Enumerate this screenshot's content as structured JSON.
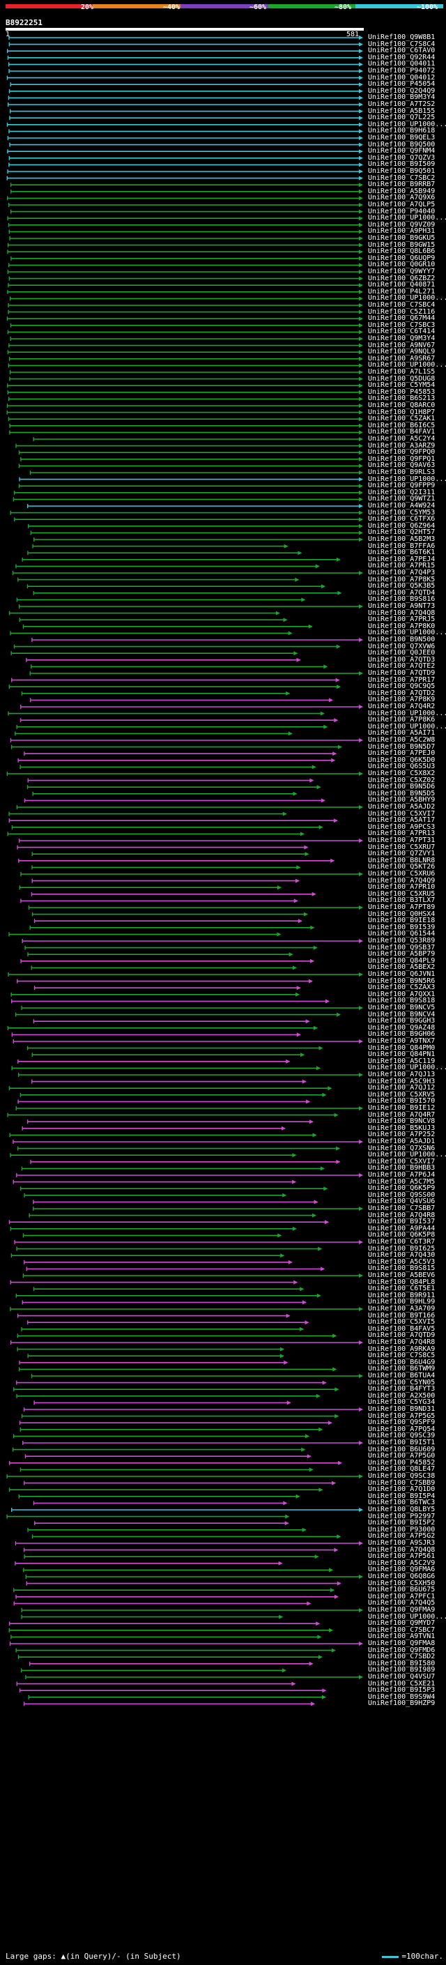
{
  "scale": {
    "labels": [
      "20%",
      "~40%",
      "~60%",
      "~80%",
      "~100%"
    ],
    "colors": [
      "#e8202a",
      "#e8821e",
      "#7b3fbf",
      "#1aa52c",
      "#37c8dc"
    ]
  },
  "query": {
    "id": "B8922251",
    "start": "1",
    "end": "581",
    "length": 581
  },
  "hit_ids": [
    "UniRef100_Q9W8B1",
    "UniRef100_C7S8C4",
    "UniRef100_C6TAV0",
    "UniRef100_Q92R44",
    "UniRef100_Q04011",
    "UniRef100_P94072",
    "UniRef100_Q04012",
    "UniRef100_P45054",
    "UniRef100_Q2Q4Q9",
    "UniRef100_B9M3Y4",
    "UniRef100_A7T2S2",
    "UniRef100_A5B155",
    "UniRef100_Q7L225",
    "UniRef100_UP1000...",
    "UniRef100_B9H618",
    "UniRef100_B9QEL3",
    "UniRef100_B9Q500",
    "UniRef100_Q9FNM4",
    "UniRef100_Q7QZV3",
    "UniRef100_B9I509",
    "UniRef100_B9Q501",
    "UniRef100_C7SBC2",
    "UniRef100_B9RRB7",
    "UniRef100_A5B949",
    "UniRef100_A7Q9X6",
    "UniRef100_A7QLP5",
    "UniRef100_P94040",
    "UniRef100_UP1000...",
    "UniRef100_Q9VZ09",
    "UniRef100_A9PH31",
    "UniRef100_B9GKU5",
    "UniRef100_B9GW15",
    "UniRef100_Q8L6B6",
    "UniRef100_Q6UQP9",
    "UniRef100_Q0GR10",
    "UniRef100_Q9WYY7",
    "UniRef100_Q6ZBZ2",
    "UniRef100_Q40871",
    "UniRef100_P4L271",
    "UniRef100_UP1000...",
    "UniRef100_C7SBC4",
    "UniRef100_C5Z116",
    "UniRef100_Q67M44",
    "UniRef100_C7SBC3",
    "UniRef100_C6T414",
    "UniRef100_Q9M3Y4",
    "UniRef100_A9NV67",
    "UniRef100_A9NQL9",
    "UniRef100_A9SR67",
    "UniRef100_UP1000...",
    "UniRef100_A7L1S5",
    "UniRef100_Q5DUG8",
    "UniRef100_C5YM54",
    "UniRef100_P45853",
    "UniRef100_B6S213",
    "UniRef100_Q8ARC0",
    "UniRef100_Q1H8P7",
    "UniRef100_C5ZAK1",
    "UniRef100_B6I6C5",
    "UniRef100_B4FAV1",
    "UniRef100_A5C2Y4",
    "UniRef100_A3ARZ9",
    "UniRef100_Q9FPQ0",
    "UniRef100_Q9FPQ1",
    "UniRef100_Q9AV63",
    "UniRef100_B9RLS3",
    "UniRef100_UP1000...",
    "UniRef100_Q9FPP9",
    "UniRef100_Q2I311",
    "UniRef100_Q9WTZ1",
    "UniRef100_A4W924",
    "UniRef100_C5YM53",
    "UniRef100_C6TFX6",
    "UniRef100_Q6Z964",
    "UniRef100_Q2HT57",
    "UniRef100_A5B2M3",
    "UniRef100_B7FFA6",
    "UniRef100_B6T6K1",
    "UniRef100_A7PEJ4",
    "UniRef100_A7PR15",
    "UniRef100_A7Q4P3",
    "UniRef100_A7P8K5",
    "UniRef100_Q5K3B5",
    "UniRef100_A7QTD4",
    "UniRef100_B9S816",
    "UniRef100_A9NT73",
    "UniRef100_A7Q4Q8",
    "UniRef100_A7PRJ5",
    "UniRef100_A7P8K0",
    "UniRef100_UP1000...",
    "UniRef100_B9N500",
    "UniRef100_Q7XVW6",
    "UniRef100_Q0JEE0",
    "UniRef100_A7QTD3",
    "UniRef100_A7QTE2",
    "UniRef100_A7QTD9",
    "UniRef100_A7PR17",
    "UniRef100_Q9C9Q5",
    "UniRef100_A7QTD2",
    "UniRef100_A7P8K9",
    "UniRef100_A7Q4R2",
    "UniRef100_UP1000...",
    "UniRef100_A7P8K6",
    "UniRef100_UP1000...",
    "UniRef100_A5AI71",
    "UniRef100_A5C2W8",
    "UniRef100_B9N5D7",
    "UniRef100_A7PEJ0",
    "UniRef100_Q6K5D0",
    "UniRef100_Q6S5U3",
    "UniRef100_C5X8X2",
    "UniRef100_C5XZ02",
    "UniRef100_B9N5D6",
    "UniRef100_B9N5D5",
    "UniRef100_A5BHY9",
    "UniRef100_A5AJD2",
    "UniRef100_C5XVI7",
    "UniRef100_A5AT17",
    "UniRef100_A9PCS3",
    "UniRef100_A7PR13",
    "UniRef100_A7PT31",
    "UniRef100_C5XRU7",
    "UniRef100_Q7ZVY1",
    "UniRef100_B8LNR8",
    "UniRef100_Q5KT26",
    "UniRef100_C5XRU6",
    "UniRef100_A7Q4Q9",
    "UniRef100_A7PR10",
    "UniRef100_C5XRU5",
    "UniRef100_B3TLX7",
    "UniRef100_A7PT89",
    "UniRef100_Q0HSX4",
    "UniRef100_B9IE18",
    "UniRef100_B9I539",
    "UniRef100_Q61544",
    "UniRef100_Q53R89",
    "UniRef100_Q9SB37",
    "UniRef100_A5BP79",
    "UniRef100_Q84PL9",
    "UniRef100_A5BEX2",
    "UniRef100_Q6JVN1",
    "UniRef100_B9N5R6",
    "UniRef100_C5ZAX3",
    "UniRef100_A7QXX1",
    "UniRef100_B9S818",
    "UniRef100_B9NCV5",
    "UniRef100_B9NCV4",
    "UniRef100_B9GGH3",
    "UniRef100_Q9AZ48",
    "UniRef100_B9GH06",
    "UniRef100_A9TNX7",
    "UniRef100_Q84PM0",
    "UniRef100_Q84PN1",
    "UniRef100_A5C119",
    "UniRef100_UP1000...",
    "UniRef100_A7QJ13",
    "UniRef100_A5C9H3",
    "UniRef100_A7QJ12",
    "UniRef100_C5XRV5",
    "UniRef100_B9I570",
    "UniRef100_B9IE12",
    "UniRef100_A7Q4R7",
    "UniRef100_B9NCV8",
    "UniRef100_B5KUJ3",
    "UniRef100_A7P252",
    "UniRef100_A5AJD1",
    "UniRef100_Q7XSN6",
    "UniRef100_UP1000...",
    "UniRef100_C5XVI7",
    "UniRef100_B9HBB3",
    "UniRef100_A7P6J4",
    "UniRef100_A5C7M5",
    "UniRef100_Q6K5P9",
    "UniRef100_Q9SS00",
    "UniRef100_Q4VSU6",
    "UniRef100_C7SBB7",
    "UniRef100_A7Q4R8",
    "UniRef100_B9I537",
    "UniRef100_A9PA44",
    "UniRef100_Q6K5P8",
    "UniRef100_C6T3R7",
    "UniRef100_B9I625",
    "UniRef100_A7Q430",
    "UniRef100_A5C5V3",
    "UniRef100_B9S815",
    "UniRef100_A5BEV6",
    "UniRef100_Q84PL8",
    "UniRef100_C6T5E1",
    "UniRef100_B9R911",
    "UniRef100_B9HL99",
    "UniRef100_A3A709",
    "UniRef100_B9T166",
    "UniRef100_C5XVI5",
    "UniRef100_B4FAV5",
    "UniRef100_A7QTD9",
    "UniRef100_A7Q4R8",
    "UniRef100_A9RKA9",
    "UniRef100_C7S8C5",
    "UniRef100_B6U4G9",
    "UniRef100_B6TWM9",
    "UniRef100_B6TUA4",
    "UniRef100_C5YN05",
    "UniRef100_B4FYT3",
    "UniRef100_A2X500",
    "UniRef100_C5YG34",
    "UniRef100_B9ND31",
    "UniRef100_A7P5G5",
    "UniRef100_Q9SPF9",
    "UniRef100_A7PQ54",
    "UniRef100_Q9SC39",
    "UniRef100_B9I5T1",
    "UniRef100_B6U609",
    "UniRef100_A7P5G0",
    "UniRef100_P45852",
    "UniRef100_Q8LE47",
    "UniRef100_Q9SC38",
    "UniRef100_C7SBB9",
    "UniRef100_A7Q1D0",
    "UniRef100_B9I5P4",
    "UniRef100_B6TWC3",
    "UniRef100_Q8LBY5",
    "UniRef100_P92997",
    "UniRef100_B9I5P2",
    "UniRef100_P93000",
    "UniRef100_A7P5G2",
    "UniRef100_A9SJR3",
    "UniRef100_A7Q4Q8",
    "UniRef100_A7P561",
    "UniRef100_A5C2V9",
    "UniRef100_Q9FMA6",
    "UniRef100_Q6Q8G6",
    "UniRef100_C5XH50",
    "UniRef100_B6U675",
    "UniRef100_A7PFC1",
    "UniRef100_A7Q4Q5",
    "UniRef100_Q9FMA9",
    "UniRef100_UP1000...",
    "UniRef100_Q9MYD7",
    "UniRef100_C7SBC7",
    "UniRef100_A9TVN1",
    "UniRef100_Q9FMA8",
    "UniRef100_Q9FMD6",
    "UniRef100_C7SBD2",
    "UniRef100_B9I580",
    "UniRef100_B9I989",
    "UniRef100_Q4VSU7",
    "UniRef100_C5XE21",
    "UniRef100_B9I5P3",
    "UniRef100_B9S9W4",
    "UniRef100_B9HZP9"
  ],
  "footer": {
    "large_gaps_label": "Large gaps: ▲(in Query)/- (in Subject)",
    "legend_label": "=100char."
  }
}
